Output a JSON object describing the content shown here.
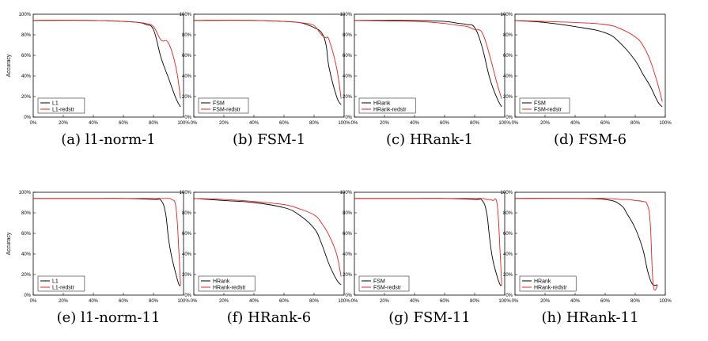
{
  "figure": {
    "y_axis_label": "Accuracy",
    "y_ticks": [
      "0%",
      "20%",
      "40%",
      "60%",
      "80%",
      "100%"
    ],
    "x_ticks": [
      "0%",
      "20%",
      "40%",
      "60%",
      "80%",
      "100%"
    ],
    "colors": {
      "baseline": "#000000",
      "redstr": "#e8211b"
    }
  },
  "chart_data": [
    {
      "type": "line",
      "caption": "(a) l1-norm-1",
      "xlim": [
        0,
        100
      ],
      "ylim": [
        0,
        100
      ],
      "x": [
        0,
        40,
        60,
        70,
        75,
        80,
        85,
        90,
        95,
        98
      ],
      "series": [
        {
          "name": "L1",
          "values": [
            94,
            94,
            93,
            92,
            90,
            85,
            58,
            38,
            18,
            10
          ]
        },
        {
          "name": "L1-redstr",
          "values": [
            94,
            94,
            93,
            92,
            91,
            88,
            75,
            72,
            48,
            18
          ]
        }
      ],
      "legend": "bottom-left"
    },
    {
      "type": "line",
      "caption": "(b) FSM-1",
      "xlim": [
        0,
        100
      ],
      "ylim": [
        0,
        100
      ],
      "x": [
        0,
        40,
        60,
        70,
        75,
        80,
        85,
        88,
        90,
        95,
        98
      ],
      "series": [
        {
          "name": "FSM",
          "values": [
            94,
            94,
            93,
            92,
            90,
            87,
            82,
            70,
            48,
            20,
            12
          ]
        },
        {
          "name": "FSM-redstr",
          "values": [
            94,
            94,
            93,
            92,
            91,
            89,
            80,
            77,
            75,
            48,
            18
          ]
        }
      ],
      "legend": "bottom-left"
    },
    {
      "type": "line",
      "caption": "(c) HRank-1",
      "xlim": [
        0,
        100
      ],
      "ylim": [
        0,
        100
      ],
      "x": [
        0,
        40,
        60,
        70,
        75,
        80,
        85,
        90,
        95,
        98
      ],
      "series": [
        {
          "name": "HRank",
          "values": [
            94,
            94,
            93,
            91,
            90,
            87,
            68,
            38,
            18,
            10
          ]
        },
        {
          "name": "HRank-redstr",
          "values": [
            94,
            93,
            91,
            89,
            88,
            85,
            82,
            60,
            32,
            18
          ]
        }
      ],
      "legend": "bottom-left"
    },
    {
      "type": "line",
      "caption": "(d) FSM-6",
      "xlim": [
        0,
        100
      ],
      "ylim": [
        0,
        100
      ],
      "x": [
        0,
        20,
        40,
        60,
        70,
        80,
        85,
        90,
        95,
        98
      ],
      "series": [
        {
          "name": "FSM",
          "values": [
            94,
            92,
            88,
            82,
            72,
            55,
            42,
            30,
            15,
            10
          ]
        },
        {
          "name": "FSM-redstr",
          "values": [
            94,
            93,
            92,
            90,
            86,
            78,
            70,
            55,
            32,
            15
          ]
        }
      ],
      "legend": "bottom-left"
    },
    {
      "type": "line",
      "caption": "(e) l1-norm-11",
      "xlim": [
        0,
        100
      ],
      "ylim": [
        0,
        100
      ],
      "x": [
        0,
        40,
        60,
        80,
        85,
        88,
        90,
        92,
        95,
        97,
        98
      ],
      "series": [
        {
          "name": "L1",
          "values": [
            94,
            94,
            94,
            93,
            92,
            80,
            55,
            38,
            20,
            10,
            10
          ]
        },
        {
          "name": "L1-redstr",
          "values": [
            94,
            94,
            94,
            94,
            94,
            94,
            94,
            93,
            85,
            40,
            10
          ]
        }
      ],
      "legend": "bottom-left"
    },
    {
      "type": "line",
      "caption": "(f) HRank-6",
      "xlim": [
        0,
        100
      ],
      "ylim": [
        0,
        100
      ],
      "x": [
        0,
        20,
        40,
        60,
        70,
        80,
        85,
        90,
        95,
        98
      ],
      "series": [
        {
          "name": "HRank",
          "values": [
            94,
            92,
            90,
            85,
            78,
            65,
            50,
            30,
            15,
            10
          ]
        },
        {
          "name": "HRank-redstr",
          "values": [
            94,
            93,
            91,
            88,
            84,
            78,
            70,
            58,
            40,
            18
          ]
        }
      ],
      "legend": "bottom-left"
    },
    {
      "type": "line",
      "caption": "(g) FSM-11",
      "xlim": [
        0,
        100
      ],
      "ylim": [
        0,
        100
      ],
      "x": [
        0,
        40,
        60,
        80,
        85,
        88,
        90,
        92,
        95,
        97,
        98
      ],
      "series": [
        {
          "name": "FSM",
          "values": [
            94,
            94,
            94,
            93,
            92,
            80,
            55,
            35,
            18,
            10,
            10
          ]
        },
        {
          "name": "FSM-redstr",
          "values": [
            94,
            94,
            94,
            94,
            94,
            93,
            93,
            92,
            88,
            40,
            10
          ]
        }
      ],
      "legend": "bottom-left"
    },
    {
      "type": "line",
      "caption": "(h) HRank-11",
      "xlim": [
        0,
        100
      ],
      "ylim": [
        0,
        100
      ],
      "x": [
        0,
        40,
        60,
        70,
        75,
        80,
        85,
        88,
        90,
        92,
        95
      ],
      "series": [
        {
          "name": "HRank",
          "values": [
            94,
            94,
            93,
            88,
            78,
            65,
            45,
            25,
            15,
            10,
            10
          ]
        },
        {
          "name": "HRank-redstr",
          "values": [
            94,
            94,
            94,
            93,
            93,
            92,
            91,
            88,
            70,
            10,
            10
          ]
        }
      ],
      "legend": "bottom-left"
    }
  ]
}
